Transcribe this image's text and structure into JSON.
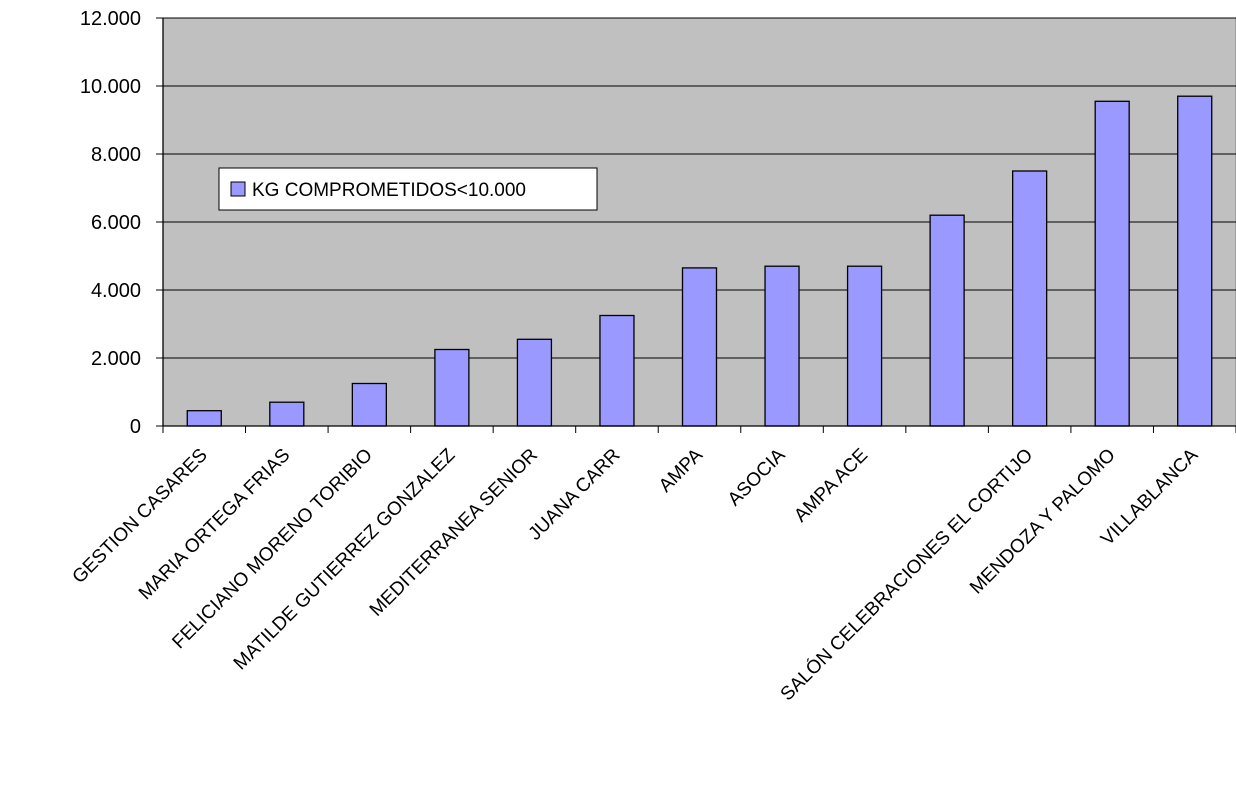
{
  "chart_data": {
    "type": "bar",
    "categories": [
      "GESTION CASARES",
      "MARIA ORTEGA FRIAS",
      "FELICIANO MORENO TORIBIO",
      "MATILDE GUTIERREZ GONZALEZ",
      "MEDITERRANEA SENIOR",
      "JUANA CARR",
      "AMPA",
      "ASOCIA",
      "AMPA ACE",
      "",
      "SALÓN CELEBRACIONES EL CORTIJO",
      "MENDOZA Y PALOMO",
      "VILLABLANCA"
    ],
    "series": [
      {
        "name": "KG COMPROMETIDOS<10.000",
        "color": "#9999ff",
        "values": [
          450,
          700,
          1250,
          2250,
          2550,
          3250,
          4650,
          4700,
          4700,
          6200,
          7500,
          9550,
          9700
        ]
      }
    ],
    "ylim": [
      0,
      12000
    ],
    "yticks": [
      "0",
      "2.000",
      "4.000",
      "6.000",
      "8.000",
      "10.000",
      "12.000"
    ],
    "title": "",
    "xlabel": "",
    "ylabel": "",
    "grid": true,
    "legend": "top-left",
    "plot_background": "#c0c0c0"
  }
}
